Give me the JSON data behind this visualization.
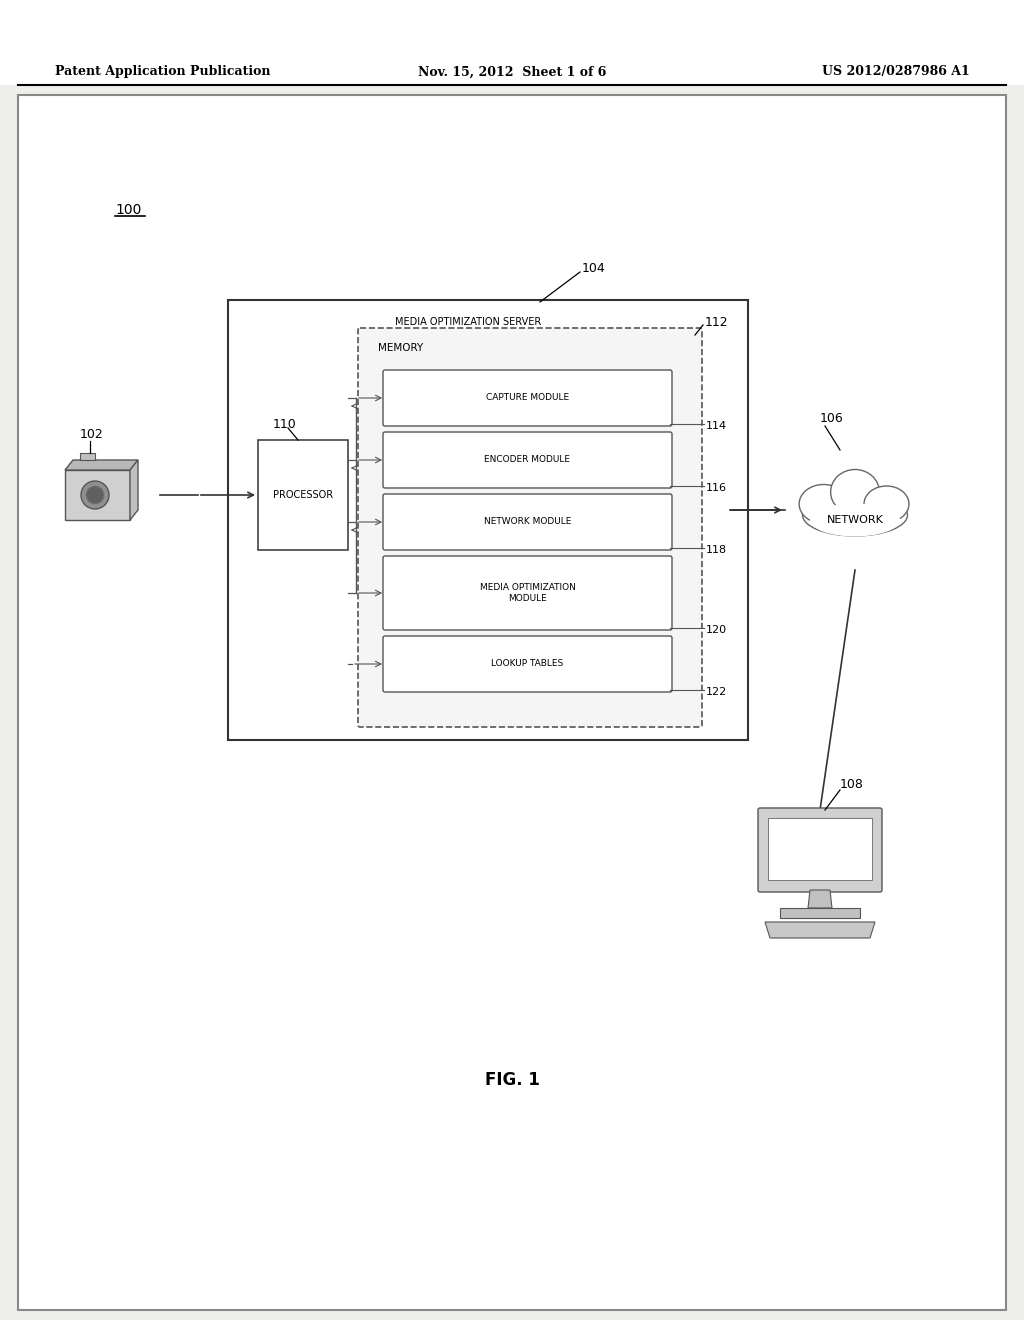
{
  "bg_color": "#ffffff",
  "page_bg": "#e8e8e8",
  "header_text_left": "Patent Application Publication",
  "header_text_mid": "Nov. 15, 2012  Sheet 1 of 6",
  "header_text_right": "US 2012/0287986 A1",
  "fig_label": "FIG. 1",
  "system_label": "100",
  "server_box_label": "MEDIA OPTIMIZATION SERVER",
  "server_label_num": "104",
  "memory_box_label": "MEMORY",
  "memory_label_num": "112",
  "processor_label": "PROCESSOR",
  "processor_label_num": "110",
  "modules": [
    {
      "label": "CAPTURE MODULE",
      "num": "114"
    },
    {
      "label": "ENCODER MODULE",
      "num": "116"
    },
    {
      "label": "NETWORK MODULE",
      "num": "118"
    },
    {
      "label": "MEDIA OPTIMIZATION\nMODULE",
      "num": "120"
    },
    {
      "label": "LOOKUP TABLES",
      "num": "122"
    }
  ],
  "network_label": "NETWORK",
  "network_label_num": "106",
  "camera_label_num": "102",
  "computer_label_num": "108"
}
